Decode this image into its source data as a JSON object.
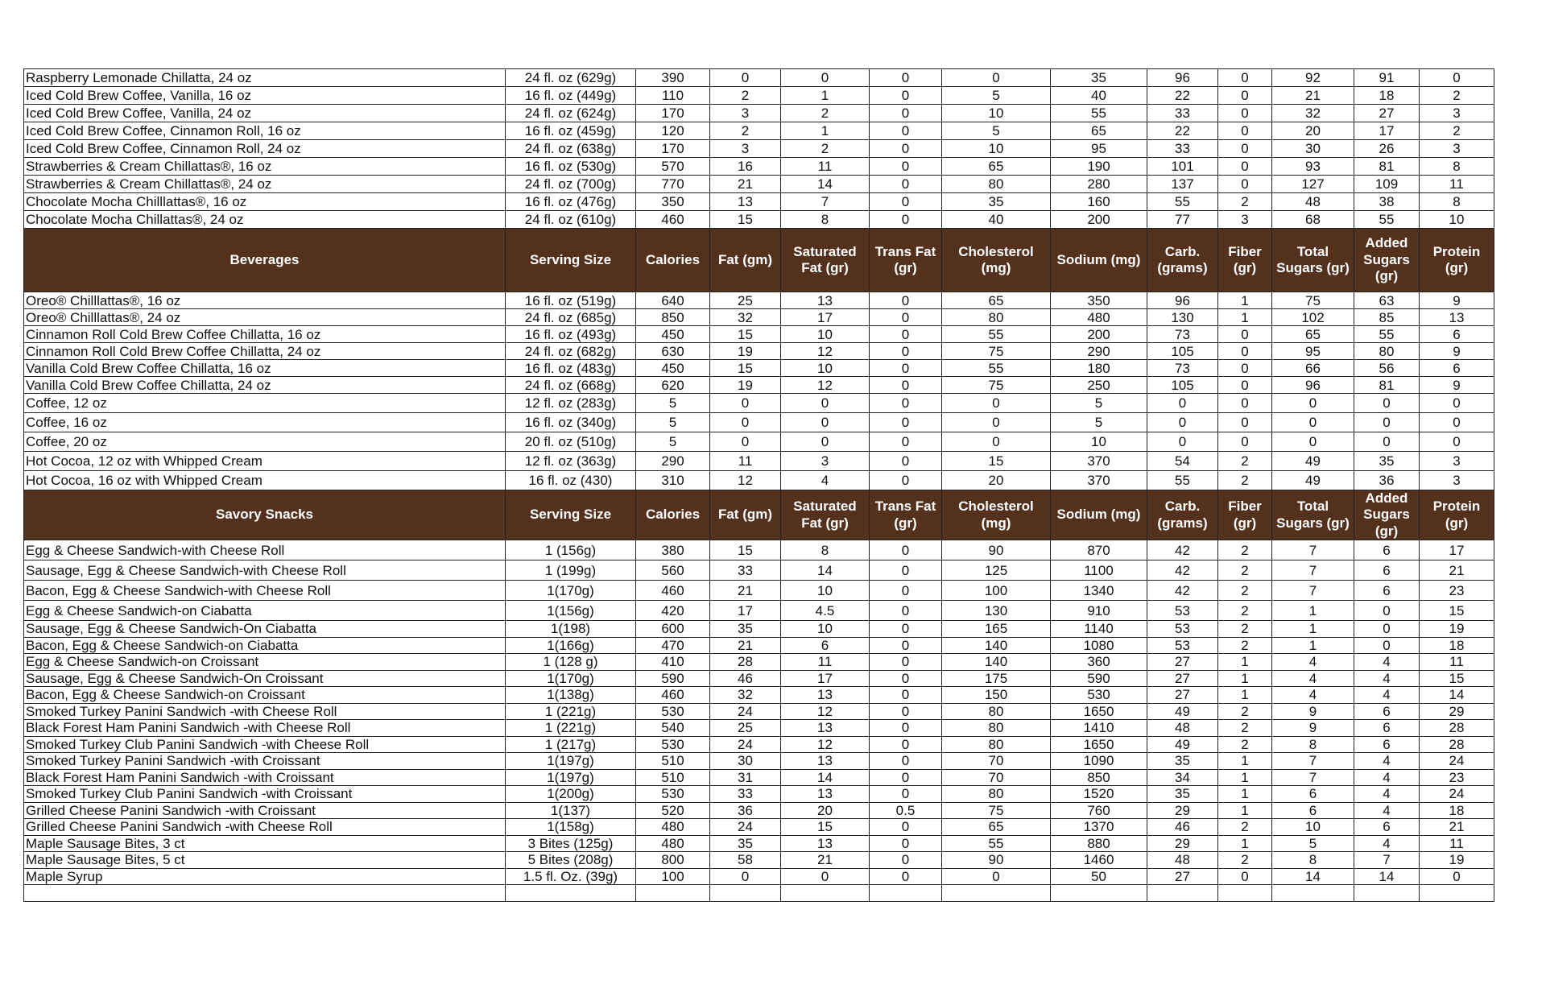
{
  "colors": {
    "header_bg": "#54311c",
    "header_text": "#ffffff",
    "border": "#222222"
  },
  "columns": [
    "Serving Size",
    "Calories",
    "Fat (gm)",
    "Saturated Fat (gr)",
    "Trans Fat (gr)",
    "Cholesterol (mg)",
    "Sodium (mg)",
    "Carb. (grams)",
    "Fiber (gr)",
    "Total Sugars (gr)",
    "Added Sugars (gr)",
    "Protein (gr)"
  ],
  "sections": [
    {
      "title": null,
      "rows": [
        [
          "Raspberry Lemonade Chillatta, 24 oz",
          "24 fl. oz (629g)",
          "390",
          "0",
          "0",
          "0",
          "0",
          "35",
          "96",
          "0",
          "92",
          "91",
          "0"
        ],
        [
          "Iced Cold Brew Coffee, Vanilla, 16 oz",
          "16 fl. oz (449g)",
          "110",
          "2",
          "1",
          "0",
          "5",
          "40",
          "22",
          "0",
          "21",
          "18",
          "2"
        ],
        [
          "Iced Cold Brew Coffee,  Vanilla, 24 oz",
          "24 fl. oz (624g)",
          "170",
          "3",
          "2",
          "0",
          "10",
          "55",
          "33",
          "0",
          "32",
          "27",
          "3"
        ],
        [
          "Iced Cold Brew Coffee, Cinnamon Roll, 16 oz",
          "16 fl. oz (459g)",
          "120",
          "2",
          "1",
          "0",
          "5",
          "65",
          "22",
          "0",
          "20",
          "17",
          "2"
        ],
        [
          "Iced Cold Brew Coffee, Cinnamon Roll, 24 oz",
          "24 fl. oz (638g)",
          "170",
          "3",
          "2",
          "0",
          "10",
          "95",
          "33",
          "0",
          "30",
          "26",
          "3"
        ],
        [
          "Strawberries & Cream Chillattas®, 16 oz",
          "16 fl. oz (530g)",
          "570",
          "16",
          "11",
          "0",
          "65",
          "190",
          "101",
          "0",
          "93",
          "81",
          "8"
        ],
        [
          "Strawberries & Cream Chillattas®, 24 oz",
          "24 fl. oz (700g)",
          "770",
          "21",
          "14",
          "0",
          "80",
          "280",
          "137",
          "0",
          "127",
          "109",
          "11"
        ],
        [
          "Chocolate Mocha Chilllattas®, 16 oz",
          "16 fl. oz (476g)",
          "350",
          "13",
          "7",
          "0",
          "35",
          "160",
          "55",
          "2",
          "48",
          "38",
          "8"
        ],
        [
          "Chocolate Mocha Chillattas®, 24 oz",
          "24 fl. oz (610g)",
          "460",
          "15",
          "8",
          "0",
          "40",
          "200",
          "77",
          "3",
          "68",
          "55",
          "10"
        ]
      ]
    },
    {
      "title": "Beverages",
      "rows": [
        [
          "Oreo® Chilllattas®, 16 oz",
          "16 fl. oz (519g)",
          "640",
          "25",
          "13",
          "0",
          "65",
          "350",
          "96",
          "1",
          "75",
          "63",
          "9"
        ],
        [
          "Oreo® Chilllattas®, 24 oz",
          "24 fl. oz (685g)",
          "850",
          "32",
          "17",
          "0",
          "80",
          "480",
          "130",
          "1",
          "102",
          "85",
          "13"
        ],
        [
          "Cinnamon Roll Cold Brew Coffee Chillatta, 16 oz",
          "16 fl. oz (493g)",
          "450",
          "15",
          "10",
          "0",
          "55",
          "200",
          "73",
          "0",
          "65",
          "55",
          "6"
        ],
        [
          "Cinnamon Roll Cold Brew Coffee Chillatta, 24 oz",
          "24 fl. oz (682g)",
          "630",
          "19",
          "12",
          "0",
          "75",
          "290",
          "105",
          "0",
          "95",
          "80",
          "9"
        ],
        [
          "Vanilla Cold Brew Coffee Chillatta, 16 oz",
          "16 fl. oz (483g)",
          "450",
          "15",
          "10",
          "0",
          "55",
          "180",
          "73",
          "0",
          "66",
          "56",
          "6"
        ],
        [
          "Vanilla Cold Brew Coffee Chillatta, 24 oz",
          "24 fl. oz (668g)",
          "620",
          "19",
          "12",
          "0",
          "75",
          "250",
          "105",
          "0",
          "96",
          "81",
          "9"
        ],
        [
          "Coffee, 12 oz",
          "12 fl. oz (283g)",
          "5",
          "0",
          "0",
          "0",
          "0",
          "5",
          "0",
          "0",
          "0",
          "0",
          "0"
        ],
        [
          "Coffee, 16 oz",
          "16 fl. oz (340g)",
          "5",
          "0",
          "0",
          "0",
          "0",
          "5",
          "0",
          "0",
          "0",
          "0",
          "0"
        ],
        [
          "Coffee, 20 oz",
          "20 fl. oz (510g)",
          "5",
          "0",
          "0",
          "0",
          "0",
          "10",
          "0",
          "0",
          "0",
          "0",
          "0"
        ],
        [
          "Hot Cocoa, 12 oz with Whipped Cream",
          "12 fl. oz (363g)",
          "290",
          "11",
          "3",
          "0",
          "15",
          "370",
          "54",
          "2",
          "49",
          "35",
          "3"
        ],
        [
          "Hot Cocoa, 16 oz with  Whipped Cream",
          "16 fl. oz (430)",
          "310",
          "12",
          "4",
          "0",
          "20",
          "370",
          "55",
          "2",
          "49",
          "36",
          "3"
        ]
      ]
    },
    {
      "title": "Savory Snacks",
      "rows": [
        [
          "Egg & Cheese Sandwich-with Cheese Roll",
          "1 (156g)",
          "380",
          "15",
          "8",
          "0",
          "90",
          "870",
          "42",
          "2",
          "7",
          "6",
          "17"
        ],
        [
          "Sausage, Egg & Cheese Sandwich-with Cheese Roll",
          "1 (199g)",
          "560",
          "33",
          "14",
          "0",
          "125",
          "1100",
          "42",
          "2",
          "7",
          "6",
          "21"
        ],
        [
          "Bacon, Egg & Cheese Sandwich-with Cheese Roll",
          "1(170g)",
          "460",
          "21",
          "10",
          "0",
          "100",
          "1340",
          "42",
          "2",
          "7",
          "6",
          "23"
        ],
        [
          "Egg & Cheese Sandwich-on Ciabatta",
          "1(156g)",
          "420",
          "17",
          "4.5",
          "0",
          "130",
          "910",
          "53",
          "2",
          "1",
          "0",
          "15"
        ],
        [
          "Sausage, Egg & Cheese Sandwich-On Ciabatta",
          "1(198)",
          "600",
          "35",
          "10",
          "0",
          "165",
          "1140",
          "53",
          "2",
          "1",
          "0",
          "19"
        ],
        [
          "Bacon, Egg & Cheese Sandwich-on Ciabatta",
          "1(166g)",
          "470",
          "21",
          "6",
          "0",
          "140",
          "1080",
          "53",
          "2",
          "1",
          "0",
          "18"
        ],
        [
          "Egg & Cheese Sandwich-on Croissant",
          "1 (128 g)",
          "410",
          "28",
          "11",
          "0",
          "140",
          "360",
          "27",
          "1",
          "4",
          "4",
          "11"
        ],
        [
          "Sausage, Egg & Cheese Sandwich-On Croissant",
          "1(170g)",
          "590",
          "46",
          "17",
          "0",
          "175",
          "590",
          "27",
          "1",
          "4",
          "4",
          "15"
        ],
        [
          "Bacon, Egg & Cheese Sandwich-on Croissant",
          "1(138g)",
          "460",
          "32",
          "13",
          "0",
          "150",
          "530",
          "27",
          "1",
          "4",
          "4",
          "14"
        ],
        [
          "Smoked Turkey Panini Sandwich -with Cheese Roll",
          "1 (221g)",
          "530",
          "24",
          "12",
          "0",
          "80",
          "1650",
          "49",
          "2",
          "9",
          "6",
          "29"
        ],
        [
          "Black Forest Ham Panini Sandwich -with Cheese Roll",
          "1 (221g)",
          "540",
          "25",
          "13",
          "0",
          "80",
          "1410",
          "48",
          "2",
          "9",
          "6",
          "28"
        ],
        [
          "Smoked Turkey Club Panini Sandwich -with Cheese Roll",
          "1 (217g)",
          "530",
          "24",
          "12",
          "0",
          "80",
          "1650",
          "49",
          "2",
          "8",
          "6",
          "28"
        ],
        [
          "Smoked Turkey Panini Sandwich -with Croissant",
          "1(197g)",
          "510",
          "30",
          "13",
          "0",
          "70",
          "1090",
          "35",
          "1",
          "7",
          "4",
          "24"
        ],
        [
          "Black Forest Ham Panini Sandwich -with Croissant",
          "1(197g)",
          "510",
          "31",
          "14",
          "0",
          "70",
          "850",
          "34",
          "1",
          "7",
          "4",
          "23"
        ],
        [
          "Smoked Turkey Club Panini Sandwich -with Croissant",
          "1(200g)",
          "530",
          "33",
          "13",
          "0",
          "80",
          "1520",
          "35",
          "1",
          "6",
          "4",
          "24"
        ],
        [
          "Grilled Cheese Panini Sandwich -with Croissant",
          "1(137)",
          "520",
          "36",
          "20",
          "0.5",
          "75",
          "760",
          "29",
          "1",
          "6",
          "4",
          "18"
        ],
        [
          "Grilled Cheese Panini Sandwich -with Cheese Roll",
          "1(158g)",
          "480",
          "24",
          "15",
          "0",
          "65",
          "1370",
          "46",
          "2",
          "10",
          "6",
          "21"
        ],
        [
          "Maple Sausage Bites, 3 ct",
          "3 Bites (125g)",
          "480",
          "35",
          "13",
          "0",
          "55",
          "880",
          "29",
          "1",
          "5",
          "4",
          "11"
        ],
        [
          "Maple Sausage Bites, 5 ct",
          "5 Bites (208g)",
          "800",
          "58",
          "21",
          "0",
          "90",
          "1460",
          "48",
          "2",
          "8",
          "7",
          "19"
        ],
        [
          "Maple Syrup",
          "1.5 fl. Oz. (39g)",
          "100",
          "0",
          "0",
          "0",
          "0",
          "50",
          "27",
          "0",
          "14",
          "14",
          "0"
        ]
      ]
    }
  ]
}
